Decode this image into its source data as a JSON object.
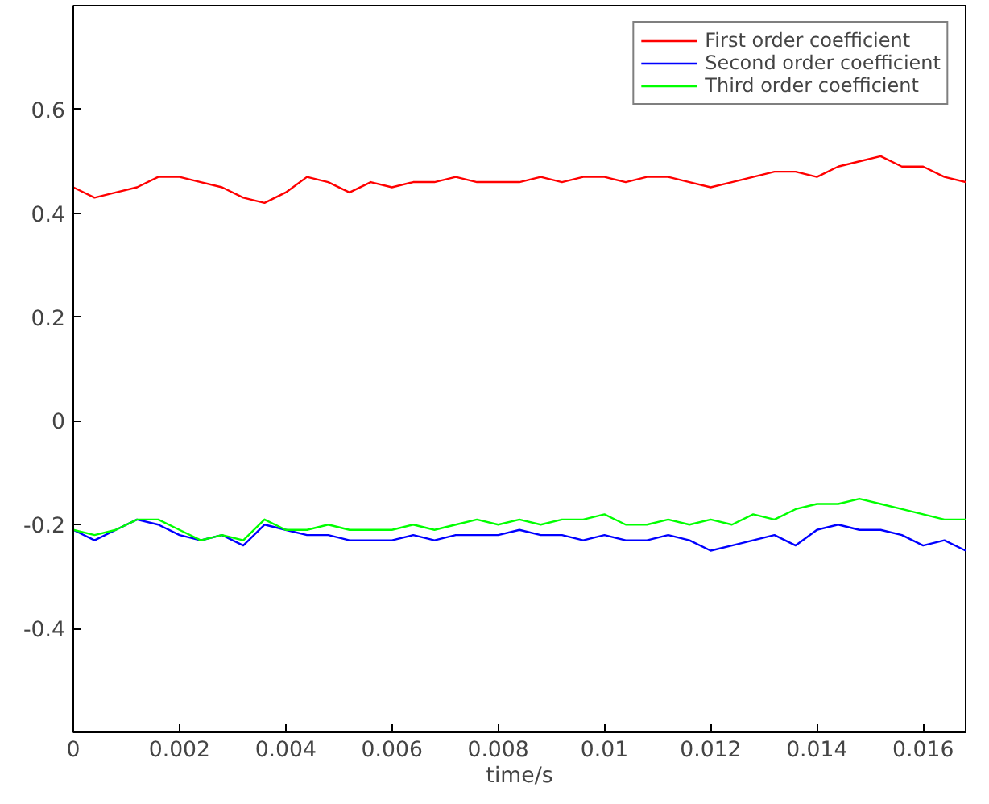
{
  "chart_data": {
    "type": "line",
    "xlabel": "time/s",
    "legend": "top right",
    "grid": false,
    "xlim": [
      0,
      0.0168
    ],
    "ylim": [
      -0.6,
      0.8
    ],
    "xticks": [
      0,
      0.002,
      0.004,
      0.006,
      0.008,
      0.01,
      0.012,
      0.014,
      0.016
    ],
    "yticks": [
      -0.4,
      -0.2,
      0,
      0.2,
      0.4,
      0.6
    ],
    "x": [
      0,
      0.0004,
      0.0008,
      0.0012,
      0.0016,
      0.002,
      0.0024,
      0.0028,
      0.0032,
      0.0036,
      0.004,
      0.0044,
      0.0048,
      0.0052,
      0.0056,
      0.006,
      0.0064,
      0.0068,
      0.0072,
      0.0076,
      0.008,
      0.0084,
      0.0088,
      0.0092,
      0.0096,
      0.01,
      0.0104,
      0.0108,
      0.0112,
      0.0116,
      0.012,
      0.0124,
      0.0128,
      0.0132,
      0.0136,
      0.014,
      0.0144,
      0.0148,
      0.0152,
      0.0156,
      0.016,
      0.0164,
      0.0168
    ],
    "series": [
      {
        "name": "First order coefficient",
        "color": "#ff0000",
        "values": [
          0.45,
          0.43,
          0.44,
          0.45,
          0.47,
          0.47,
          0.46,
          0.45,
          0.43,
          0.42,
          0.44,
          0.47,
          0.46,
          0.44,
          0.46,
          0.45,
          0.46,
          0.46,
          0.47,
          0.46,
          0.46,
          0.46,
          0.47,
          0.46,
          0.47,
          0.47,
          0.46,
          0.47,
          0.47,
          0.46,
          0.45,
          0.46,
          0.47,
          0.48,
          0.48,
          0.47,
          0.49,
          0.5,
          0.51,
          0.49,
          0.49,
          0.47,
          0.46
        ]
      },
      {
        "name": "Second order coefficient",
        "color": "#0000ff",
        "values": [
          -0.21,
          -0.23,
          -0.21,
          -0.19,
          -0.2,
          -0.22,
          -0.23,
          -0.22,
          -0.24,
          -0.2,
          -0.21,
          -0.22,
          -0.22,
          -0.23,
          -0.23,
          -0.23,
          -0.22,
          -0.23,
          -0.22,
          -0.22,
          -0.22,
          -0.21,
          -0.22,
          -0.22,
          -0.23,
          -0.22,
          -0.23,
          -0.23,
          -0.22,
          -0.23,
          -0.25,
          -0.24,
          -0.23,
          -0.22,
          -0.24,
          -0.21,
          -0.2,
          -0.21,
          -0.21,
          -0.22,
          -0.24,
          -0.23,
          -0.25
        ]
      },
      {
        "name": "Third order coefficient",
        "color": "#00ff00",
        "values": [
          -0.21,
          -0.22,
          -0.21,
          -0.19,
          -0.19,
          -0.21,
          -0.23,
          -0.22,
          -0.23,
          -0.19,
          -0.21,
          -0.21,
          -0.2,
          -0.21,
          -0.21,
          -0.21,
          -0.2,
          -0.21,
          -0.2,
          -0.19,
          -0.2,
          -0.19,
          -0.2,
          -0.19,
          -0.19,
          -0.18,
          -0.2,
          -0.2,
          -0.19,
          -0.2,
          -0.19,
          -0.2,
          -0.18,
          -0.19,
          -0.17,
          -0.16,
          -0.16,
          -0.15,
          -0.16,
          -0.17,
          -0.18,
          -0.19,
          -0.19
        ]
      }
    ]
  }
}
